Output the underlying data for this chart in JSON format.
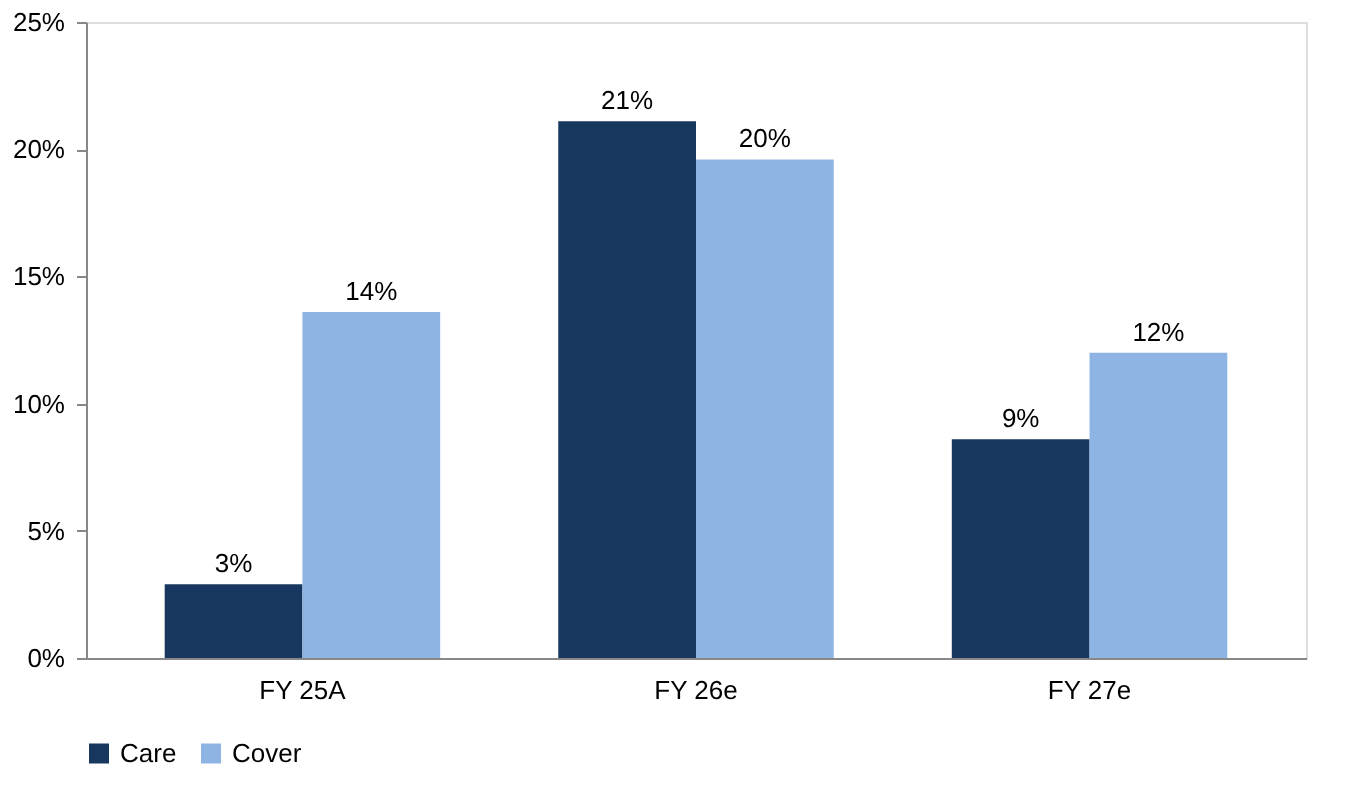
{
  "chart_data": {
    "type": "bar",
    "categories": [
      "FY 25A",
      "FY 26e",
      "FY 27e"
    ],
    "series": [
      {
        "name": "Care",
        "color": "#17375e",
        "values": [
          2.9,
          21.1,
          8.6
        ],
        "value_labels": [
          "3%",
          "21%",
          "9%"
        ]
      },
      {
        "name": "Cover",
        "color": "#8db4e2",
        "values": [
          13.6,
          19.6,
          12.0
        ],
        "value_labels": [
          "14%",
          "20%",
          "12%"
        ]
      }
    ],
    "ylim": [
      0,
      25
    ],
    "yticks": [
      {
        "value": 0,
        "label": "0%"
      },
      {
        "value": 5,
        "label": "5%"
      },
      {
        "value": 10,
        "label": "10%"
      },
      {
        "value": 15,
        "label": "15%"
      },
      {
        "value": 20,
        "label": "20%"
      },
      {
        "value": 25,
        "label": "25%"
      }
    ],
    "grid": false,
    "legend": "bottom"
  }
}
